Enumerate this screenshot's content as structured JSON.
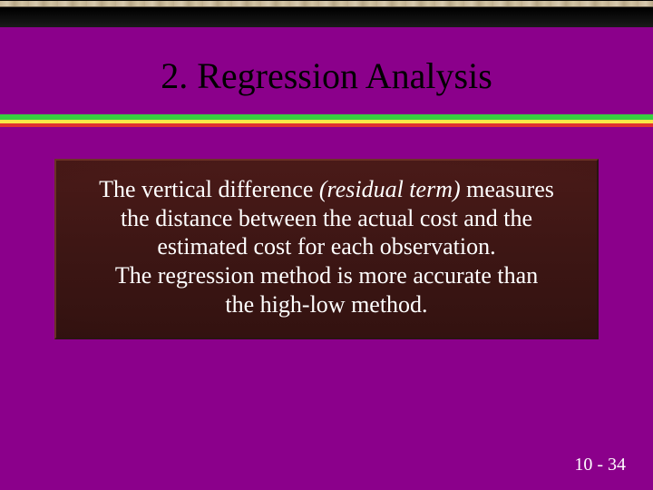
{
  "slide": {
    "background_color": "#8b008b",
    "banner": {
      "texture_colors": [
        "#c8b89a",
        "#d4c7a8",
        "#b8a888",
        "#d0c0a0"
      ],
      "dark_band": "#000000"
    },
    "title": {
      "text": "2. Regression Analysis",
      "font_size": 40,
      "color": "#000000",
      "underline_colors": {
        "green": "#38d040",
        "yellow": "#f8e848",
        "red": "#e03030"
      }
    },
    "content_box": {
      "fill_gradient": [
        "#4a1a18",
        "#3d1614",
        "#331210"
      ],
      "border_light": "#6b3226",
      "border_dark": "#2a1410",
      "text_color": "#ffffff",
      "font_size": 26,
      "line1_a": "The vertical difference ",
      "line1_italic": "(residual term)",
      "line1_b": " measures",
      "line2": "the distance between the actual cost and the",
      "line3": "estimated cost for each observation.",
      "line4": "The regression method is more accurate than",
      "line5": "the high-low method."
    },
    "page_number": {
      "text": "10 - 34",
      "color": "#ffffff",
      "font_size": 20
    }
  }
}
